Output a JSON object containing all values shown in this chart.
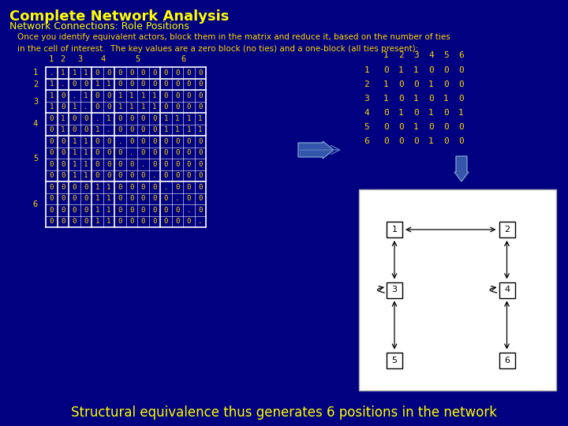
{
  "bg_color": "#000080",
  "title": "Complete Network Analysis",
  "subtitle": "Network Connections: Role Positions",
  "title_color": "#FFFF00",
  "subtitle_color": "#FFFF00",
  "body_text": "Once you identify equivalent actors, block them in the matrix and reduce it, based on the number of ties\nin the cell of interest.  The key values are a zero block (no ties) and a one-block (all ties present):",
  "body_color": "#FFD700",
  "reduced_matrix_header": [
    "1",
    "2",
    "3",
    "4",
    "5",
    "6"
  ],
  "reduced_matrix": [
    [
      "1",
      "0",
      "1",
      "1",
      "0",
      "0",
      "0"
    ],
    [
      "2",
      "1",
      "0",
      "0",
      "1",
      "0",
      "0"
    ],
    [
      "3",
      "1",
      "0",
      "1",
      "0",
      "1",
      "0"
    ],
    [
      "4",
      "0",
      "1",
      "0",
      "1",
      "0",
      "1"
    ],
    [
      "5",
      "0",
      "0",
      "1",
      "0",
      "0",
      "0"
    ],
    [
      "6",
      "0",
      "0",
      "0",
      "1",
      "0",
      "0"
    ]
  ],
  "footer": "Structural equivalence thus generates 6 positions in the network",
  "footer_color": "#FFFF00",
  "matrix_text_color": "#FFD700",
  "matrix_line_color": "#FFFFFF"
}
